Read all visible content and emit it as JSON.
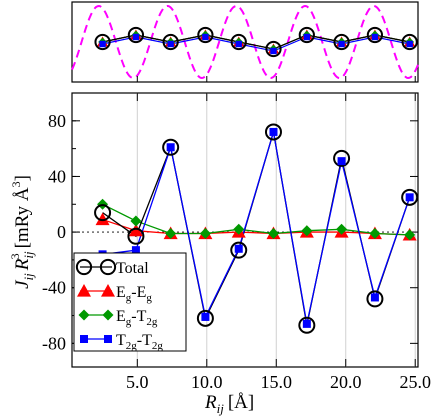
{
  "chart_data": {
    "type": "line",
    "xlabel": "R",
    "xlabel_sub": "ij",
    "xlabel_unit": "[Å]",
    "ylabel": "J",
    "ylabel_sub_top": "ij",
    "ylabel_R": "R",
    "ylabel_sub_R": "ij",
    "ylabel_sup": "3",
    "ylabel_unit_open": "[mRy Å",
    "ylabel_unit_sup": "3",
    "ylabel_unit_close": "]",
    "x_ticks": [
      5.0,
      10.0,
      15.0,
      20.0,
      25.0
    ],
    "x_tick_labels": [
      "5.0",
      "10.0",
      "15.0",
      "20.0",
      "25.0"
    ],
    "y_ticks": [
      -80,
      -40,
      0,
      40,
      80
    ],
    "y_tick_labels": [
      "-80",
      "-40",
      "0",
      "40",
      "80"
    ],
    "xlim": [
      0.3,
      25.2
    ],
    "ylim": [
      -97,
      100
    ],
    "grid": "vertical",
    "legend_position": "bottom-left",
    "x": [
      2.5,
      4.9,
      7.4,
      9.9,
      12.3,
      14.8,
      17.2,
      19.7,
      22.1,
      24.6
    ],
    "series": [
      {
        "name": "Total",
        "color": "#000000",
        "marker": "open-circle",
        "values": [
          14,
          -3,
          61,
          -62,
          -13,
          72,
          -67,
          53,
          -48,
          25
        ]
      },
      {
        "name": "Eg-Eg",
        "color": "#ff0000",
        "marker": "triangle",
        "values": [
          9,
          1,
          -1,
          -1,
          0,
          -1,
          0,
          0,
          -1,
          -2
        ]
      },
      {
        "name": "Eg-T2g",
        "color": "#009900",
        "marker": "diamond",
        "values": [
          20,
          8,
          -1,
          -1,
          2,
          -1,
          1,
          2,
          -1,
          -2
        ]
      },
      {
        "name": "T2g-T2g",
        "color": "#0000ff",
        "marker": "square",
        "values": [
          -16,
          -13,
          61,
          -61,
          -12,
          72,
          -66,
          51,
          -47,
          25
        ]
      }
    ],
    "legend": [
      {
        "main": "Total",
        "sub1": "",
        "mid": "",
        "sub2": ""
      },
      {
        "main": "E",
        "sub1": "g",
        "mid": "-E",
        "sub2": "g"
      },
      {
        "main": "E",
        "sub1": "g",
        "mid": "-T",
        "sub2": "2g"
      },
      {
        "main": "T",
        "sub1": "2g",
        "mid": "-T",
        "sub2": "2g"
      }
    ],
    "inset": {
      "description_series": [
        {
          "color": "#ff00ff",
          "style": "dashed",
          "kind": "sinusoid"
        }
      ],
      "values_offset_total": [
        0,
        -1,
        0,
        -1,
        0,
        1,
        -1,
        0,
        -1,
        0
      ]
    }
  }
}
